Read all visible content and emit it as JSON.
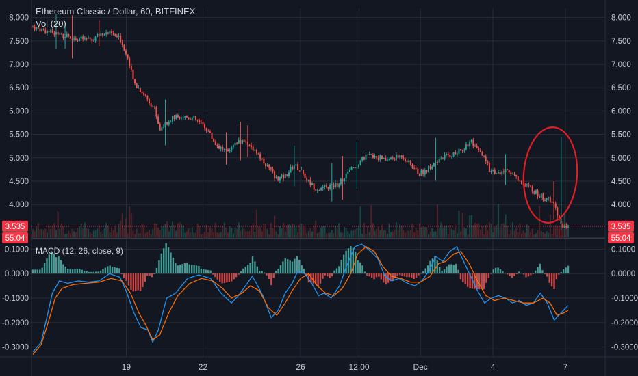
{
  "header": {
    "title": "Ethereum Classic / Dollar, 60, BITFINEX",
    "volume_label": "Vol (20)",
    "macd_label": "MACD (12, 26, close, 9)"
  },
  "price_badge": {
    "price": "3.535",
    "countdown": "55:04",
    "color": "#f23645"
  },
  "colors": {
    "background": "#131722",
    "grid": "#2a2e39",
    "up": "#26a69a",
    "down": "#ef5350",
    "macd_line": "#2196f3",
    "signal_line": "#ff6d00",
    "annotation": "#e31e24"
  },
  "chart_data": [
    {
      "type": "candlestick",
      "title": "Ethereum Classic / Dollar, 60, BITFINEX",
      "ylim": [
        3.3,
        8.2
      ],
      "y_ticks": [
        "8.000",
        "7.500",
        "7.000",
        "6.500",
        "6.000",
        "5.500",
        "5.000",
        "4.500",
        "4.000",
        "3.535"
      ],
      "x_ticks": [
        "19",
        "22",
        "26",
        "12:00",
        "Dec",
        "4",
        "7"
      ],
      "last_price": 3.535,
      "close_path": [
        [
          0,
          7.8
        ],
        [
          20,
          7.7
        ],
        [
          45,
          7.62
        ],
        [
          65,
          7.55
        ],
        [
          85,
          7.52
        ],
        [
          100,
          7.68
        ],
        [
          112,
          7.65
        ],
        [
          125,
          7.55
        ],
        [
          135,
          7.2
        ],
        [
          145,
          6.6
        ],
        [
          160,
          6.35
        ],
        [
          175,
          6.05
        ],
        [
          182,
          5.6
        ],
        [
          195,
          5.8
        ],
        [
          210,
          5.9
        ],
        [
          230,
          5.85
        ],
        [
          248,
          5.65
        ],
        [
          262,
          5.3
        ],
        [
          280,
          5.1
        ],
        [
          295,
          5.35
        ],
        [
          305,
          5.35
        ],
        [
          320,
          5.15
        ],
        [
          335,
          4.85
        ],
        [
          350,
          4.55
        ],
        [
          362,
          4.6
        ],
        [
          375,
          4.85
        ],
        [
          385,
          4.75
        ],
        [
          392,
          4.55
        ],
        [
          405,
          4.35
        ],
        [
          420,
          4.35
        ],
        [
          438,
          4.45
        ],
        [
          450,
          4.65
        ],
        [
          465,
          4.85
        ],
        [
          475,
          5.0
        ],
        [
          490,
          5.05
        ],
        [
          505,
          4.95
        ],
        [
          520,
          5.0
        ],
        [
          530,
          5.05
        ],
        [
          545,
          4.8
        ],
        [
          555,
          4.65
        ],
        [
          565,
          4.75
        ],
        [
          580,
          4.95
        ],
        [
          595,
          5.05
        ],
        [
          608,
          5.1
        ],
        [
          618,
          5.2
        ],
        [
          628,
          5.35
        ],
        [
          635,
          5.2
        ],
        [
          645,
          5.05
        ],
        [
          655,
          4.75
        ],
        [
          668,
          4.65
        ],
        [
          680,
          4.75
        ],
        [
          690,
          4.65
        ],
        [
          700,
          4.45
        ],
        [
          715,
          4.35
        ],
        [
          725,
          4.2
        ],
        [
          740,
          4.1
        ],
        [
          750,
          3.95
        ],
        [
          755,
          3.7
        ],
        [
          760,
          3.55
        ],
        [
          768,
          3.535
        ]
      ]
    },
    {
      "type": "macd",
      "title": "MACD (12, 26, close, 9)",
      "ylim": [
        -0.34,
        0.14
      ],
      "y_ticks": [
        "0.1000",
        "0.0000",
        "-0.1000",
        "-0.2000",
        "-0.3000"
      ],
      "macd_path": [
        [
          0,
          -0.32
        ],
        [
          12,
          -0.28
        ],
        [
          20,
          -0.18
        ],
        [
          28,
          -0.08
        ],
        [
          38,
          -0.03
        ],
        [
          50,
          -0.04
        ],
        [
          65,
          -0.03
        ],
        [
          80,
          -0.035
        ],
        [
          95,
          -0.03
        ],
        [
          110,
          0.0
        ],
        [
          125,
          -0.015
        ],
        [
          135,
          -0.08
        ],
        [
          145,
          -0.16
        ],
        [
          155,
          -0.22
        ],
        [
          165,
          -0.23
        ],
        [
          172,
          -0.28
        ],
        [
          180,
          -0.23
        ],
        [
          192,
          -0.1
        ],
        [
          205,
          -0.08
        ],
        [
          222,
          -0.02
        ],
        [
          238,
          -0.005
        ],
        [
          255,
          -0.02
        ],
        [
          270,
          -0.08
        ],
        [
          285,
          -0.12
        ],
        [
          295,
          -0.09
        ],
        [
          305,
          -0.05
        ],
        [
          315,
          -0.01
        ],
        [
          330,
          -0.09
        ],
        [
          342,
          -0.18
        ],
        [
          352,
          -0.15
        ],
        [
          362,
          -0.08
        ],
        [
          372,
          -0.04
        ],
        [
          380,
          0.01
        ],
        [
          390,
          0.0
        ],
        [
          400,
          -0.04
        ],
        [
          410,
          -0.09
        ],
        [
          418,
          -0.08
        ],
        [
          428,
          -0.1
        ],
        [
          440,
          -0.05
        ],
        [
          450,
          0.03
        ],
        [
          462,
          0.11
        ],
        [
          472,
          0.12
        ],
        [
          485,
          0.09
        ],
        [
          495,
          0.06
        ],
        [
          505,
          -0.01
        ],
        [
          515,
          -0.03
        ],
        [
          525,
          -0.02
        ],
        [
          538,
          -0.04
        ],
        [
          548,
          -0.05
        ],
        [
          558,
          -0.03
        ],
        [
          568,
          0.01
        ],
        [
          578,
          0.07
        ],
        [
          588,
          0.05
        ],
        [
          598,
          0.09
        ],
        [
          608,
          0.11
        ],
        [
          618,
          0.05
        ],
        [
          628,
          -0.01
        ],
        [
          638,
          -0.07
        ],
        [
          648,
          -0.12
        ],
        [
          658,
          -0.1
        ],
        [
          668,
          -0.09
        ],
        [
          678,
          -0.1
        ],
        [
          688,
          -0.12
        ],
        [
          698,
          -0.11
        ],
        [
          708,
          -0.13
        ],
        [
          718,
          -0.12
        ],
        [
          728,
          -0.08
        ],
        [
          738,
          -0.12
        ],
        [
          748,
          -0.19
        ],
        [
          758,
          -0.16
        ],
        [
          768,
          -0.13
        ]
      ],
      "signal_path": [
        [
          0,
          -0.33
        ],
        [
          12,
          -0.29
        ],
        [
          22,
          -0.2
        ],
        [
          32,
          -0.1
        ],
        [
          42,
          -0.06
        ],
        [
          58,
          -0.045
        ],
        [
          75,
          -0.04
        ],
        [
          95,
          -0.035
        ],
        [
          112,
          -0.02
        ],
        [
          128,
          -0.03
        ],
        [
          140,
          -0.08
        ],
        [
          152,
          -0.16
        ],
        [
          162,
          -0.21
        ],
        [
          172,
          -0.27
        ],
        [
          182,
          -0.25
        ],
        [
          195,
          -0.16
        ],
        [
          208,
          -0.09
        ],
        [
          225,
          -0.04
        ],
        [
          242,
          -0.02
        ],
        [
          258,
          -0.03
        ],
        [
          272,
          -0.06
        ],
        [
          285,
          -0.1
        ],
        [
          300,
          -0.08
        ],
        [
          312,
          -0.05
        ],
        [
          325,
          -0.07
        ],
        [
          338,
          -0.14
        ],
        [
          350,
          -0.17
        ],
        [
          362,
          -0.12
        ],
        [
          372,
          -0.07
        ],
        [
          384,
          -0.02
        ],
        [
          396,
          0.0
        ],
        [
          408,
          -0.05
        ],
        [
          420,
          -0.08
        ],
        [
          432,
          -0.09
        ],
        [
          444,
          -0.06
        ],
        [
          456,
          -0.0
        ],
        [
          466,
          0.08
        ],
        [
          478,
          0.11
        ],
        [
          490,
          0.09
        ],
        [
          502,
          0.03
        ],
        [
          514,
          -0.01
        ],
        [
          528,
          -0.02
        ],
        [
          542,
          -0.035
        ],
        [
          556,
          -0.035
        ],
        [
          570,
          -0.01
        ],
        [
          582,
          0.04
        ],
        [
          592,
          0.05
        ],
        [
          604,
          0.08
        ],
        [
          614,
          0.09
        ],
        [
          626,
          0.04
        ],
        [
          638,
          -0.03
        ],
        [
          650,
          -0.09
        ],
        [
          662,
          -0.11
        ],
        [
          676,
          -0.1
        ],
        [
          690,
          -0.11
        ],
        [
          704,
          -0.12
        ],
        [
          718,
          -0.12
        ],
        [
          732,
          -0.1
        ],
        [
          742,
          -0.12
        ],
        [
          752,
          -0.17
        ],
        [
          762,
          -0.16
        ],
        [
          768,
          -0.15
        ]
      ]
    }
  ]
}
